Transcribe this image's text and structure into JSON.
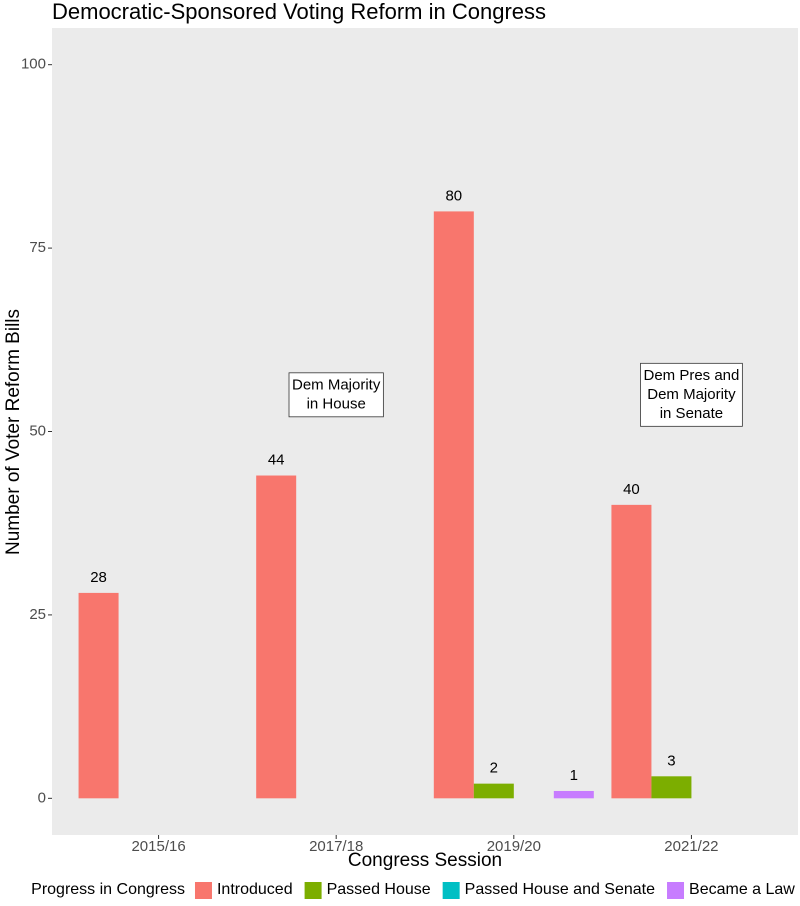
{
  "chart_data": {
    "type": "bar",
    "title": "Democratic-Sponsored Voting Reform in Congress",
    "x_label": "Congress Session",
    "y_label": "Number of Voter Reform Bills",
    "legend_title": "Progress in Congress",
    "legend_position": "bottom",
    "categories": [
      "2015/16",
      "2017/18",
      "2019/20",
      "2021/22"
    ],
    "series": [
      {
        "name": "Introduced",
        "color": "#f8766d",
        "values": [
          28,
          44,
          80,
          40
        ]
      },
      {
        "name": "Passed House",
        "color": "#7cae00",
        "values": [
          null,
          null,
          2,
          3
        ]
      },
      {
        "name": "Passed House and Senate",
        "color": "#00bfc4",
        "values": [
          null,
          null,
          null,
          null
        ]
      },
      {
        "name": "Became a Law",
        "color": "#c77cff",
        "values": [
          null,
          null,
          1,
          null
        ]
      }
    ],
    "ylim": [
      -5,
      105
    ],
    "yticks": [
      0,
      25,
      50,
      75,
      100
    ],
    "grid": false,
    "annotations": [
      {
        "lines": [
          "Dem Majority",
          "in House"
        ],
        "category": "2017/18",
        "y": 55
      },
      {
        "lines": [
          "Dem Pres and",
          "Dem Majority",
          "in Senate"
        ],
        "category": "2021/22",
        "y": 55
      }
    ]
  }
}
